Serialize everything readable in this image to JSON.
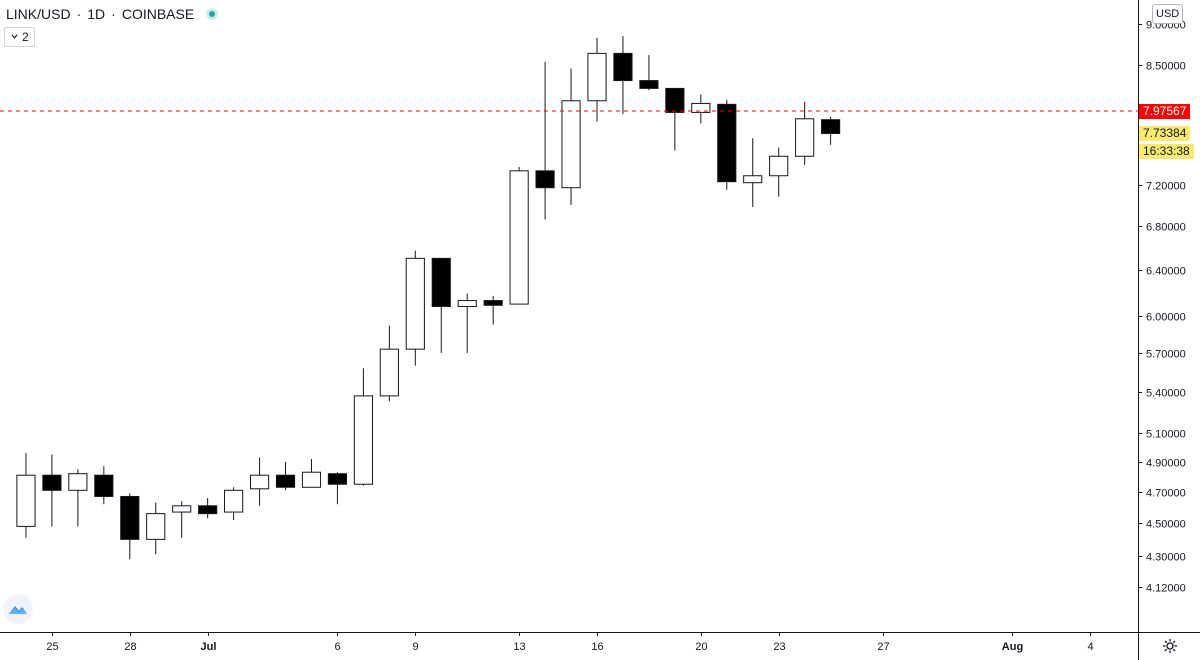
{
  "header": {
    "symbol": "LINK/USD",
    "interval": "1D",
    "exchange": "COINBASE",
    "separator": "·"
  },
  "collapse_button": {
    "label": "2"
  },
  "currency_button": {
    "label": "USD"
  },
  "price_badges": {
    "last_price": {
      "value": "7.97567",
      "color": "#ff0000"
    },
    "current_price": {
      "value": "7.73384",
      "color": "#fbe96d"
    },
    "countdown": {
      "value": "16:33:38",
      "color": "#fbe96d"
    }
  },
  "chart_data": {
    "type": "candlestick",
    "y_scale": "log",
    "ylim": [
      4.0,
      9.05
    ],
    "y_ticks": [
      {
        "value": 9.0,
        "label": "9.00000"
      },
      {
        "value": 8.5,
        "label": "8.50000"
      },
      {
        "value": 7.2,
        "label": "7.20000"
      },
      {
        "value": 6.8,
        "label": "6.80000"
      },
      {
        "value": 6.4,
        "label": "6.40000"
      },
      {
        "value": 6.0,
        "label": "6.00000"
      },
      {
        "value": 5.7,
        "label": "5.70000"
      },
      {
        "value": 5.4,
        "label": "5.40000"
      },
      {
        "value": 5.1,
        "label": "5.10000"
      },
      {
        "value": 4.9,
        "label": "4.90000"
      },
      {
        "value": 4.7,
        "label": "4.70000"
      },
      {
        "value": 4.5,
        "label": "4.50000"
      },
      {
        "value": 4.3,
        "label": "4.30000"
      },
      {
        "value": 4.12,
        "label": "4.12000"
      }
    ],
    "x_ticks": [
      {
        "date": "2020-06-25",
        "label": "25"
      },
      {
        "date": "2020-06-28",
        "label": "28"
      },
      {
        "date": "2020-07-01",
        "label": "Jul"
      },
      {
        "date": "2020-07-06",
        "label": "6"
      },
      {
        "date": "2020-07-09",
        "label": "9"
      },
      {
        "date": "2020-07-13",
        "label": "13"
      },
      {
        "date": "2020-07-16",
        "label": "16"
      },
      {
        "date": "2020-07-20",
        "label": "20"
      },
      {
        "date": "2020-07-23",
        "label": "23"
      },
      {
        "date": "2020-07-27",
        "label": "27"
      },
      {
        "date": "2020-08-01",
        "label": "Aug"
      },
      {
        "date": "2020-08-04",
        "label": "4"
      }
    ],
    "xlim": [
      "2020-06-23",
      "2020-08-08"
    ],
    "last_price_line": 7.97567,
    "candles": [
      {
        "date": "2020-06-24",
        "open": 4.48,
        "high": 4.96,
        "low": 4.41,
        "close": 4.81
      },
      {
        "date": "2020-06-25",
        "open": 4.81,
        "high": 4.95,
        "low": 4.48,
        "close": 4.71
      },
      {
        "date": "2020-06-26",
        "open": 4.71,
        "high": 4.85,
        "low": 4.48,
        "close": 4.82
      },
      {
        "date": "2020-06-27",
        "open": 4.81,
        "high": 4.87,
        "low": 4.62,
        "close": 4.67
      },
      {
        "date": "2020-06-28",
        "open": 4.67,
        "high": 4.69,
        "low": 4.28,
        "close": 4.4
      },
      {
        "date": "2020-06-29",
        "open": 4.4,
        "high": 4.63,
        "low": 4.31,
        "close": 4.56
      },
      {
        "date": "2020-06-30",
        "open": 4.57,
        "high": 4.64,
        "low": 4.41,
        "close": 4.61
      },
      {
        "date": "2020-07-01",
        "open": 4.61,
        "high": 4.66,
        "low": 4.53,
        "close": 4.56
      },
      {
        "date": "2020-07-02",
        "open": 4.57,
        "high": 4.73,
        "low": 4.52,
        "close": 4.71
      },
      {
        "date": "2020-07-03",
        "open": 4.72,
        "high": 4.93,
        "low": 4.61,
        "close": 4.81
      },
      {
        "date": "2020-07-04",
        "open": 4.81,
        "high": 4.9,
        "low": 4.71,
        "close": 4.73
      },
      {
        "date": "2020-07-05",
        "open": 4.73,
        "high": 4.92,
        "low": 4.73,
        "close": 4.83
      },
      {
        "date": "2020-07-06",
        "open": 4.82,
        "high": 4.83,
        "low": 4.62,
        "close": 4.75
      },
      {
        "date": "2020-07-07",
        "open": 4.75,
        "high": 5.58,
        "low": 4.74,
        "close": 5.37
      },
      {
        "date": "2020-07-08",
        "open": 5.37,
        "high": 5.92,
        "low": 5.33,
        "close": 5.73
      },
      {
        "date": "2020-07-09",
        "open": 5.73,
        "high": 6.57,
        "low": 5.6,
        "close": 6.5
      },
      {
        "date": "2020-07-10",
        "open": 6.5,
        "high": 6.5,
        "low": 5.7,
        "close": 6.08
      },
      {
        "date": "2020-07-11",
        "open": 6.08,
        "high": 6.19,
        "low": 5.7,
        "close": 6.13
      },
      {
        "date": "2020-07-12",
        "open": 6.13,
        "high": 6.17,
        "low": 5.93,
        "close": 6.09
      },
      {
        "date": "2020-07-13",
        "open": 6.1,
        "high": 7.38,
        "low": 6.1,
        "close": 7.34
      },
      {
        "date": "2020-07-14",
        "open": 7.34,
        "high": 8.54,
        "low": 6.86,
        "close": 7.17
      },
      {
        "date": "2020-07-15",
        "open": 7.17,
        "high": 8.46,
        "low": 7.0,
        "close": 8.09
      },
      {
        "date": "2020-07-16",
        "open": 8.09,
        "high": 8.83,
        "low": 7.86,
        "close": 8.64
      },
      {
        "date": "2020-07-17",
        "open": 8.64,
        "high": 8.85,
        "low": 7.94,
        "close": 8.32
      },
      {
        "date": "2020-07-18",
        "open": 8.32,
        "high": 8.62,
        "low": 8.21,
        "close": 8.23
      },
      {
        "date": "2020-07-19",
        "open": 8.23,
        "high": 8.23,
        "low": 7.55,
        "close": 7.96
      },
      {
        "date": "2020-07-20",
        "open": 7.96,
        "high": 8.16,
        "low": 7.84,
        "close": 8.06
      },
      {
        "date": "2020-07-21",
        "open": 8.05,
        "high": 8.1,
        "low": 7.15,
        "close": 7.23
      },
      {
        "date": "2020-07-22",
        "open": 7.22,
        "high": 7.68,
        "low": 6.98,
        "close": 7.29
      },
      {
        "date": "2020-07-23",
        "open": 7.29,
        "high": 7.58,
        "low": 7.08,
        "close": 7.49
      },
      {
        "date": "2020-07-24",
        "open": 7.49,
        "high": 8.08,
        "low": 7.4,
        "close": 7.89
      },
      {
        "date": "2020-07-25",
        "open": 7.88,
        "high": 7.91,
        "low": 7.61,
        "close": 7.73
      }
    ]
  }
}
